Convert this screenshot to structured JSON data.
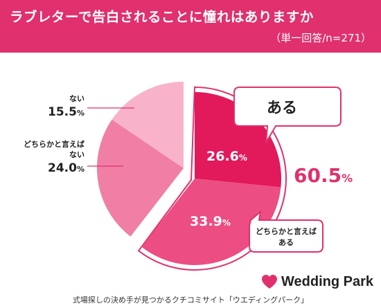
{
  "header": {
    "title": "ラブレターで告白されることに憧れはありますか",
    "subtitle": "（単一回答/n=271）"
  },
  "chart_data": {
    "type": "pie",
    "categories": [
      "ある",
      "どちらかと言えばある",
      "どちらかと言えばない",
      "ない"
    ],
    "values": [
      26.6,
      33.9,
      24.0,
      15.5
    ],
    "colors": [
      "#e2195a",
      "#ec4d82",
      "#f07ea5",
      "#f8b3cb"
    ],
    "value_labels": [
      "26.6%",
      "33.9%",
      "24.0%",
      "15.5%"
    ],
    "group_total_label": "60.5%",
    "group_callout": "ある"
  },
  "labels": {
    "nai_category": "ない",
    "nai_value": "15.5",
    "dochira_nai_line1": "どちらかと言えば",
    "dochira_nai_line2": "ない",
    "dochira_nai_value": "24.0",
    "percent": "%",
    "dochira_aru_line1": "どちらかと言えば",
    "dochira_aru_line2": "ある",
    "total_value": "60.5",
    "slice_aru_value": "26.6",
    "slice_dochira_aru_value": "33.9"
  },
  "brand": {
    "name": "Wedding Park",
    "accent": "#e0306d"
  },
  "footer": {
    "text": "式場探しの決め手が見つかるクチコミサイト「ウエディングパーク」"
  }
}
